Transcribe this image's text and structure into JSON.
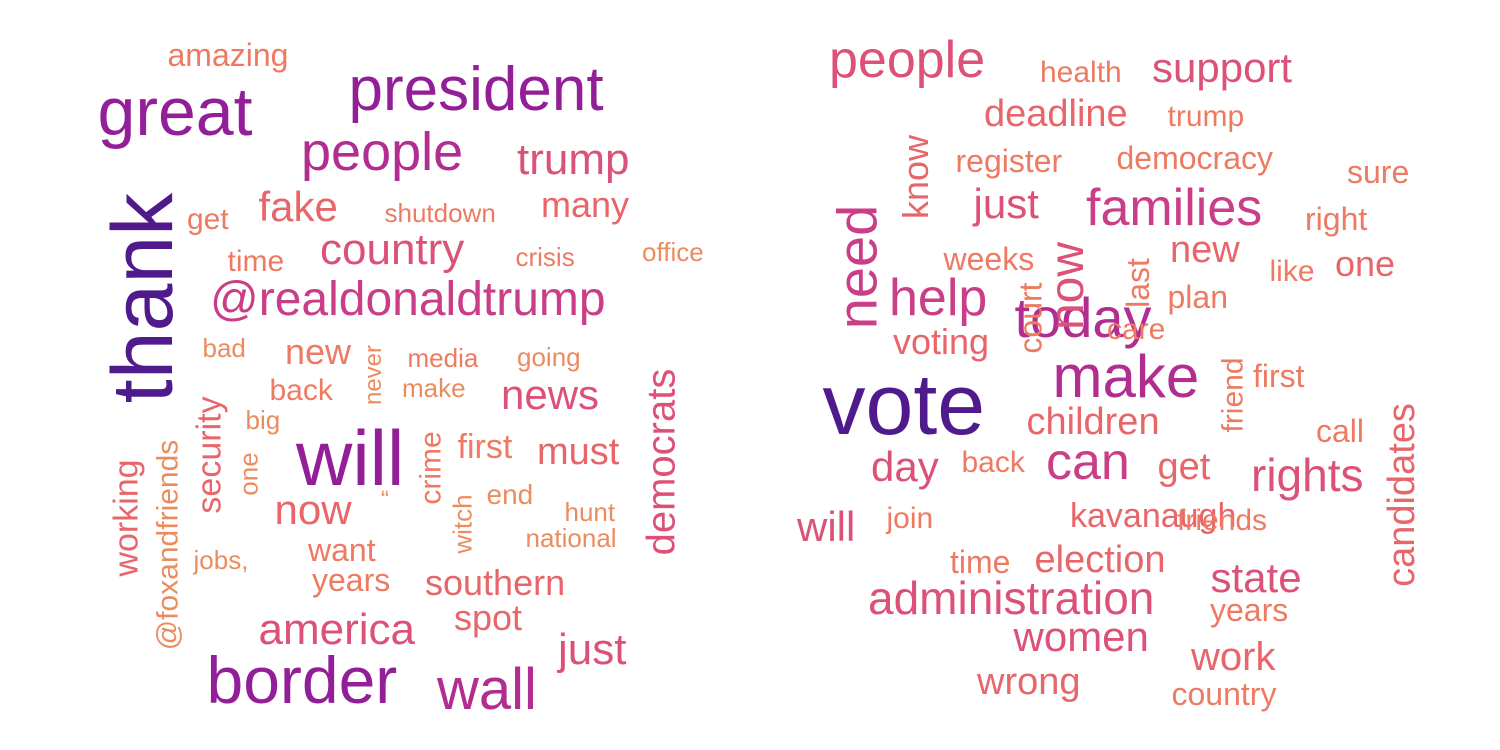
{
  "chart_data": [
    {
      "type": "wordcloud",
      "words": [
        {
          "text": "thank",
          "weight": 1.0
        },
        {
          "text": "great",
          "weight": 0.8
        },
        {
          "text": "will",
          "weight": 0.85
        },
        {
          "text": "president",
          "weight": 0.75
        },
        {
          "text": "border",
          "weight": 0.78
        },
        {
          "text": "people",
          "weight": 0.65
        },
        {
          "text": "wall",
          "weight": 0.65
        },
        {
          "text": "@realdonaldtrump",
          "weight": 0.55
        },
        {
          "text": "country",
          "weight": 0.5
        },
        {
          "text": "trump",
          "weight": 0.5
        },
        {
          "text": "america",
          "weight": 0.5
        },
        {
          "text": "democrats",
          "weight": 0.5
        },
        {
          "text": "news",
          "weight": 0.45
        },
        {
          "text": "just",
          "weight": 0.45
        },
        {
          "text": "fake",
          "weight": 0.42
        },
        {
          "text": "now",
          "weight": 0.42
        },
        {
          "text": "must",
          "weight": 0.4
        },
        {
          "text": "southern",
          "weight": 0.38
        },
        {
          "text": "many",
          "weight": 0.38
        },
        {
          "text": "security",
          "weight": 0.38
        },
        {
          "text": "spot",
          "weight": 0.36
        },
        {
          "text": "working",
          "weight": 0.36
        },
        {
          "text": "first",
          "weight": 0.35
        },
        {
          "text": "new",
          "weight": 0.33
        },
        {
          "text": "want",
          "weight": 0.32
        },
        {
          "text": "years",
          "weight": 0.32
        },
        {
          "text": "crime",
          "weight": 0.3
        },
        {
          "text": "time",
          "weight": 0.3
        },
        {
          "text": "get",
          "weight": 0.3
        },
        {
          "text": "amazing",
          "weight": 0.3
        },
        {
          "text": "back",
          "weight": 0.28
        },
        {
          "text": "shutdown",
          "weight": 0.26
        },
        {
          "text": "crisis",
          "weight": 0.26
        },
        {
          "text": "media",
          "weight": 0.26
        },
        {
          "text": "going",
          "weight": 0.25
        },
        {
          "text": "end",
          "weight": 0.25
        },
        {
          "text": "hunt",
          "weight": 0.25
        },
        {
          "text": "make",
          "weight": 0.25
        },
        {
          "text": "big",
          "weight": 0.25
        },
        {
          "text": "bad",
          "weight": 0.24
        },
        {
          "text": "national",
          "weight": 0.23
        },
        {
          "text": "jobs,",
          "weight": 0.23
        },
        {
          "text": "witch",
          "weight": 0.23
        },
        {
          "text": "@foxandfriends",
          "weight": 0.25
        },
        {
          "text": "office",
          "weight": 0.22
        },
        {
          "text": "one",
          "weight": 0.22
        },
        {
          "text": "never",
          "weight": 0.2
        },
        {
          "text": "“",
          "weight": 0.2
        }
      ]
    },
    {
      "type": "wordcloud",
      "words": [
        {
          "text": "vote",
          "weight": 1.0
        },
        {
          "text": "make",
          "weight": 0.72
        },
        {
          "text": "today",
          "weight": 0.7
        },
        {
          "text": "need",
          "weight": 0.62
        },
        {
          "text": "can",
          "weight": 0.58
        },
        {
          "text": "help",
          "weight": 0.56
        },
        {
          "text": "families",
          "weight": 0.55
        },
        {
          "text": "people",
          "weight": 0.5
        },
        {
          "text": "now",
          "weight": 0.5
        },
        {
          "text": "rights",
          "weight": 0.5
        },
        {
          "text": "administration",
          "weight": 0.48
        },
        {
          "text": "women",
          "weight": 0.46
        },
        {
          "text": "support",
          "weight": 0.46
        },
        {
          "text": "will",
          "weight": 0.45
        },
        {
          "text": "just",
          "weight": 0.45
        },
        {
          "text": "day",
          "weight": 0.45
        },
        {
          "text": "state",
          "weight": 0.45
        },
        {
          "text": "candidates",
          "weight": 0.42
        },
        {
          "text": "children",
          "weight": 0.42
        },
        {
          "text": "election",
          "weight": 0.4
        },
        {
          "text": "deadline",
          "weight": 0.4
        },
        {
          "text": "new",
          "weight": 0.4
        },
        {
          "text": "know",
          "weight": 0.4
        },
        {
          "text": "wrong",
          "weight": 0.4
        },
        {
          "text": "work",
          "weight": 0.4
        },
        {
          "text": "voting",
          "weight": 0.38
        },
        {
          "text": "get",
          "weight": 0.38
        },
        {
          "text": "one",
          "weight": 0.38
        },
        {
          "text": "kavanaugh",
          "weight": 0.36
        },
        {
          "text": "democracy",
          "weight": 0.35
        },
        {
          "text": "sure",
          "weight": 0.35
        },
        {
          "text": "last",
          "weight": 0.35
        },
        {
          "text": "court",
          "weight": 0.34
        },
        {
          "text": "register",
          "weight": 0.34
        },
        {
          "text": "right",
          "weight": 0.34
        },
        {
          "text": "care",
          "weight": 0.33
        },
        {
          "text": "call",
          "weight": 0.33
        },
        {
          "text": "country",
          "weight": 0.33
        },
        {
          "text": "plan",
          "weight": 0.32
        },
        {
          "text": "weeks",
          "weight": 0.32
        },
        {
          "text": "time",
          "weight": 0.32
        },
        {
          "text": "first",
          "weight": 0.32
        },
        {
          "text": "years",
          "weight": 0.32
        },
        {
          "text": "trump",
          "weight": 0.3
        },
        {
          "text": "like",
          "weight": 0.3
        },
        {
          "text": "friends",
          "weight": 0.3
        },
        {
          "text": "join",
          "weight": 0.3
        },
        {
          "text": "back",
          "weight": 0.3
        },
        {
          "text": "health",
          "weight": 0.28
        },
        {
          "text": "friend",
          "weight": 0.28
        }
      ]
    }
  ]
}
